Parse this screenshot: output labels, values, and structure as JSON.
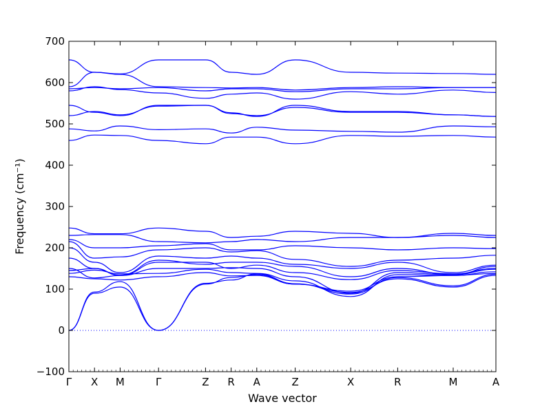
{
  "chart_data": {
    "type": "line",
    "xlabel": "Wave vector",
    "ylabel": "Frequency (cm⁻¹)",
    "ylim": [
      -100,
      700
    ],
    "yticks": [
      -100,
      0,
      100,
      200,
      300,
      400,
      500,
      600,
      700
    ],
    "x_ticks": [
      {
        "label": "Γ",
        "x": 0.0
      },
      {
        "label": "X",
        "x": 0.6
      },
      {
        "label": "M",
        "x": 1.2
      },
      {
        "label": "Γ",
        "x": 2.1
      },
      {
        "label": "Z",
        "x": 3.2
      },
      {
        "label": "R",
        "x": 3.8
      },
      {
        "label": "A",
        "x": 4.4
      },
      {
        "label": "Z",
        "x": 5.3
      },
      {
        "label": "X",
        "x": 6.6
      },
      {
        "label": "R",
        "x": 7.7
      },
      {
        "label": "M",
        "x": 9.0
      },
      {
        "label": "A",
        "x": 10.0
      }
    ],
    "xlim": [
      0,
      10
    ],
    "zero_line": 0,
    "line_color": "#0000ff",
    "segments": [
      0,
      0.6,
      1.2,
      2.1,
      3.2,
      3.8,
      4.4,
      5.3,
      6.6,
      7.7,
      9.0,
      10.0
    ],
    "bands": [
      [
        0,
        90,
        105,
        0,
        112,
        128,
        135,
        112,
        92,
        125,
        105,
        133
      ],
      [
        0,
        93,
        118,
        0,
        114,
        122,
        137,
        113,
        88,
        128,
        108,
        136
      ],
      [
        130,
        125,
        122,
        130,
        140,
        132,
        133,
        112,
        95,
        130,
        133,
        138
      ],
      [
        138,
        146,
        137,
        138,
        148,
        140,
        138,
        120,
        82,
        135,
        133,
        142
      ],
      [
        145,
        150,
        133,
        150,
        150,
        152,
        150,
        130,
        90,
        140,
        135,
        148
      ],
      [
        150,
        127,
        133,
        165,
        165,
        150,
        158,
        140,
        123,
        145,
        137,
        150
      ],
      [
        175,
        150,
        134,
        170,
        160,
        165,
        165,
        155,
        130,
        150,
        135,
        155
      ],
      [
        200,
        165,
        140,
        180,
        175,
        180,
        175,
        160,
        150,
        165,
        140,
        158
      ],
      [
        215,
        175,
        178,
        195,
        200,
        190,
        193,
        172,
        155,
        170,
        175,
        182
      ],
      [
        220,
        200,
        200,
        205,
        210,
        195,
        195,
        205,
        200,
        195,
        200,
        198
      ],
      [
        230,
        232,
        232,
        215,
        212,
        215,
        220,
        215,
        225,
        225,
        230,
        225
      ],
      [
        248,
        234,
        234,
        248,
        240,
        225,
        228,
        240,
        235,
        225,
        235,
        230
      ],
      [
        460,
        473,
        472,
        460,
        452,
        468,
        468,
        452,
        472,
        470,
        472,
        468
      ],
      [
        488,
        483,
        495,
        486,
        488,
        478,
        492,
        485,
        482,
        480,
        495,
        493
      ],
      [
        520,
        530,
        522,
        543,
        545,
        527,
        518,
        545,
        530,
        530,
        522,
        518
      ],
      [
        545,
        528,
        520,
        545,
        545,
        525,
        520,
        540,
        528,
        528,
        522,
        518
      ],
      [
        580,
        590,
        583,
        575,
        562,
        572,
        575,
        560,
        578,
        572,
        582,
        576
      ],
      [
        585,
        588,
        585,
        588,
        580,
        585,
        585,
        578,
        585,
        585,
        588,
        588
      ],
      [
        590,
        625,
        620,
        590,
        588,
        587,
        588,
        582,
        588,
        590,
        588,
        588
      ],
      [
        655,
        625,
        621,
        655,
        655,
        625,
        620,
        655,
        625,
        623,
        622,
        620
      ]
    ]
  }
}
